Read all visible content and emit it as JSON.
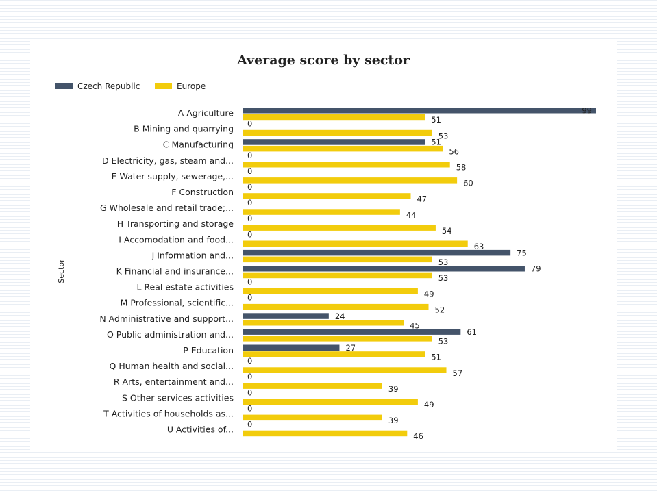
{
  "chart_data": {
    "type": "bar",
    "orientation": "horizontal",
    "title": "Average score by sector",
    "ylabel": "Sector",
    "xlabel": "",
    "xlim": [
      0,
      99
    ],
    "grid": false,
    "legend_position": "top-left",
    "categories": [
      "A Agriculture",
      "B Mining and quarrying",
      "C Manufacturing",
      "D Electricity, gas, steam and...",
      "E Water supply, sewerage,...",
      "F Construction",
      "G Wholesale and retail trade;...",
      "H Transporting and storage",
      "I Accomodation and food...",
      "J Information and...",
      "K Financial and insurance...",
      "L Real estate activities",
      "M Professional, scientific...",
      "N Administrative and support...",
      "O Public administration and...",
      "P Education",
      "Q Human health and social...",
      "R Arts, entertainment and...",
      "S Other services activities",
      "T Activities of households as...",
      "U Activities of..."
    ],
    "series": [
      {
        "name": "Czech Republic",
        "color": "#44546a",
        "values": [
          99,
          0,
          51,
          0,
          0,
          0,
          0,
          0,
          0,
          75,
          79,
          0,
          0,
          24,
          61,
          27,
          0,
          0,
          0,
          0,
          0
        ]
      },
      {
        "name": "Europe",
        "color": "#f2cc0c",
        "values": [
          51,
          53,
          56,
          58,
          60,
          47,
          44,
          54,
          63,
          53,
          53,
          49,
          52,
          45,
          53,
          51,
          57,
          39,
          49,
          39,
          46
        ]
      }
    ]
  }
}
